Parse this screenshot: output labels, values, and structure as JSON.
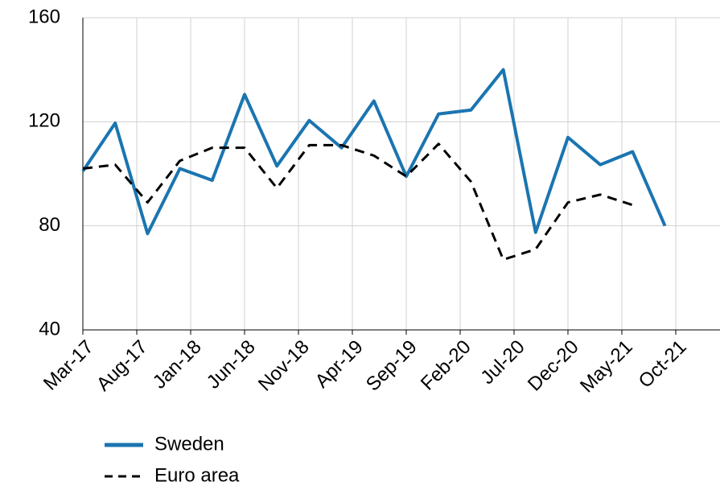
{
  "chart_data": {
    "type": "line",
    "x": [
      0,
      3,
      6,
      9,
      12,
      15,
      18,
      21,
      24,
      27,
      30,
      33,
      36,
      39,
      42,
      45,
      48,
      51,
      54
    ],
    "xlim": [
      0,
      59
    ],
    "xticks": [
      {
        "value": 0,
        "label": "Mar-17"
      },
      {
        "value": 5,
        "label": "Aug-17"
      },
      {
        "value": 10,
        "label": "Jan-18"
      },
      {
        "value": 15,
        "label": "Jun-18"
      },
      {
        "value": 20,
        "label": "Nov-18"
      },
      {
        "value": 25,
        "label": "Apr-19"
      },
      {
        "value": 30,
        "label": "Sep-19"
      },
      {
        "value": 35,
        "label": "Feb-20"
      },
      {
        "value": 40,
        "label": "Jul-20"
      },
      {
        "value": 45,
        "label": "Dec-20"
      },
      {
        "value": 50,
        "label": "May-21"
      },
      {
        "value": 55,
        "label": "Oct-21"
      }
    ],
    "ylim": [
      40,
      160
    ],
    "yticks": [
      40,
      80,
      120,
      160
    ],
    "grid": true,
    "series": [
      {
        "name": "Sweden",
        "color": "#1a75b0",
        "dash": false,
        "values": [
          101,
          119.5,
          77,
          102,
          97.5,
          130.5,
          103,
          120.5,
          110,
          128,
          99,
          123,
          124.5,
          140,
          77.5,
          114,
          103.5,
          108.5,
          80
        ]
      },
      {
        "name": "Euro area",
        "color": "#000000",
        "dash": true,
        "values": [
          102,
          103.5,
          89,
          105,
          110,
          110,
          94.5,
          111,
          111,
          107,
          99,
          111.5,
          97,
          67,
          71,
          89,
          92,
          88,
          null
        ]
      }
    ]
  }
}
